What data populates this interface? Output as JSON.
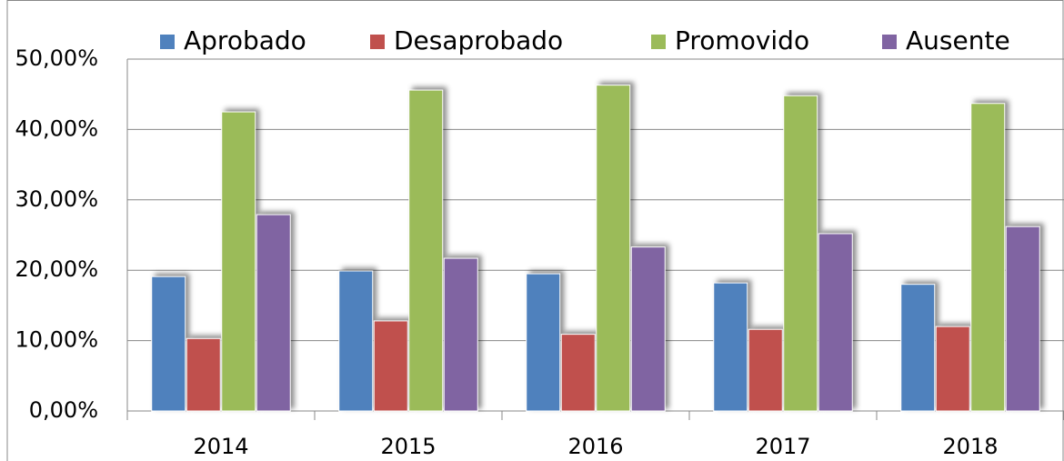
{
  "chart_data": {
    "type": "bar",
    "categories": [
      "2014",
      "2015",
      "2016",
      "2017",
      "2018"
    ],
    "series": [
      {
        "name": "Aprobado",
        "color": "#4f81bd",
        "values": [
          19.1,
          19.9,
          19.5,
          18.2,
          18.0
        ]
      },
      {
        "name": "Desaprobado",
        "color": "#c0504d",
        "values": [
          10.3,
          12.8,
          10.9,
          11.6,
          12.0
        ]
      },
      {
        "name": "Promovido",
        "color": "#9bbb59",
        "values": [
          42.5,
          45.6,
          46.3,
          44.8,
          43.7
        ]
      },
      {
        "name": "Ausente",
        "color": "#8064a2",
        "values": [
          27.9,
          21.7,
          23.3,
          25.2,
          26.2
        ]
      }
    ],
    "ylim": [
      0,
      50
    ],
    "yticks": [
      {
        "value": 0,
        "label": "0,00%"
      },
      {
        "value": 10,
        "label": "10,00%"
      },
      {
        "value": 20,
        "label": "20,00%"
      },
      {
        "value": 30,
        "label": "30,00%"
      },
      {
        "value": 40,
        "label": "40,00%"
      },
      {
        "value": 50,
        "label": "50,00%"
      }
    ],
    "grid": true,
    "legend": "top"
  }
}
